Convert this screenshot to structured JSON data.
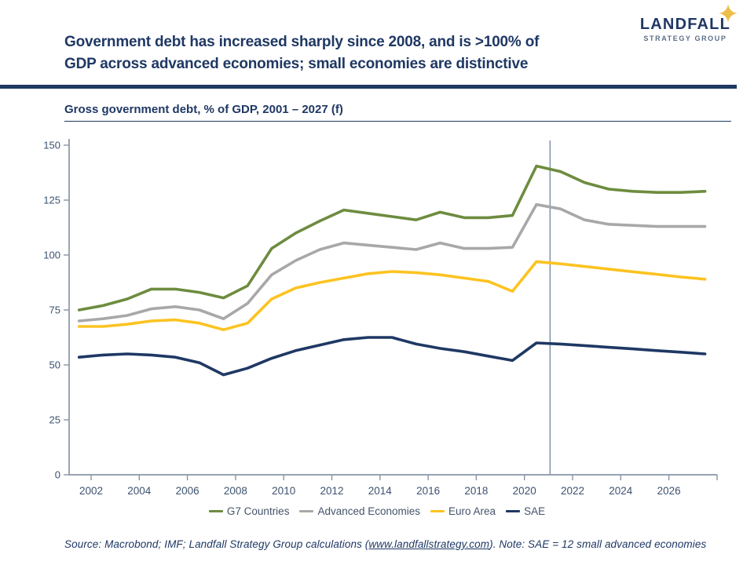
{
  "header": {
    "title_line1": "Government debt has increased sharply since 2008, and is >100% of",
    "title_line2": "GDP across advanced economies; small economies are distinctive",
    "logo": {
      "name": "LANDFALL",
      "subname": "STRATEGY GROUP",
      "name_color": "#1F3864",
      "subname_color": "#5C6E88",
      "star_color": "#EEBE4D"
    },
    "divider_color": "#1F3864"
  },
  "chart_data": {
    "type": "line",
    "title": "Gross government debt, % of GDP, 2001 – 2027 (f)",
    "xlabel": "",
    "ylabel": "% of GDP",
    "ylim": [
      0,
      150
    ],
    "y_ticks": [
      0,
      25,
      50,
      75,
      100,
      125,
      150
    ],
    "x_ticks": [
      2002,
      2004,
      2006,
      2008,
      2010,
      2012,
      2014,
      2016,
      2018,
      2020,
      2022,
      2024,
      2026
    ],
    "x": [
      2001,
      2002,
      2003,
      2004,
      2005,
      2006,
      2007,
      2008,
      2009,
      2010,
      2011,
      2012,
      2013,
      2014,
      2015,
      2016,
      2017,
      2018,
      2019,
      2020,
      2021,
      2022,
      2023,
      2024,
      2025,
      2026,
      2027
    ],
    "forecast_divider_year": 2021,
    "grid": false,
    "legend_position": "bottom",
    "axis_color": "#8A94A4",
    "tick_label_color": "#3D5270",
    "divider_line_color": "#7F90AD",
    "series": [
      {
        "name": "G7 Countries",
        "color": "#6D8C3F",
        "values": [
          75,
          77,
          80,
          84.5,
          84.5,
          83,
          80.5,
          86,
          103,
          110,
          115.5,
          120.5,
          119,
          117.5,
          116,
          119.5,
          117,
          117,
          118,
          140.5,
          138,
          133,
          130,
          129,
          128.5,
          128.5,
          129
        ]
      },
      {
        "name": "Advanced Economies",
        "color": "#A8A8A8",
        "values": [
          70,
          71,
          72.5,
          75.5,
          76.5,
          75,
          71,
          78,
          91,
          97.5,
          102.5,
          105.5,
          104.5,
          103.5,
          102.5,
          105.5,
          103,
          103,
          103.5,
          123,
          121,
          116,
          114,
          113.5,
          113,
          113,
          113
        ]
      },
      {
        "name": "Euro Area",
        "color": "#FCC321",
        "values": [
          67.5,
          67.5,
          68.5,
          70,
          70.5,
          69,
          66,
          69,
          80,
          85,
          87.5,
          89.5,
          91.5,
          92.5,
          92,
          91,
          89.5,
          88,
          83.5,
          97,
          96,
          94.8,
          93.6,
          92.4,
          91.2,
          90,
          89
        ]
      },
      {
        "name": "SAE",
        "color": "#1F3864",
        "values": [
          53.5,
          54.5,
          55,
          54.5,
          53.5,
          51,
          45.5,
          48.5,
          53,
          56.5,
          59,
          61.5,
          62.5,
          62.5,
          59.5,
          57.5,
          56,
          54,
          52,
          60,
          59.5,
          58.8,
          58,
          57.3,
          56.5,
          55.8,
          55
        ]
      }
    ]
  },
  "footer": {
    "source_prefix": "Source: Macrobond; IMF; Landfall Strategy Group calculations (",
    "source_link": "www.landfallstrategy.com",
    "source_suffix": ").  Note: SAE = 12 small advanced economies"
  }
}
